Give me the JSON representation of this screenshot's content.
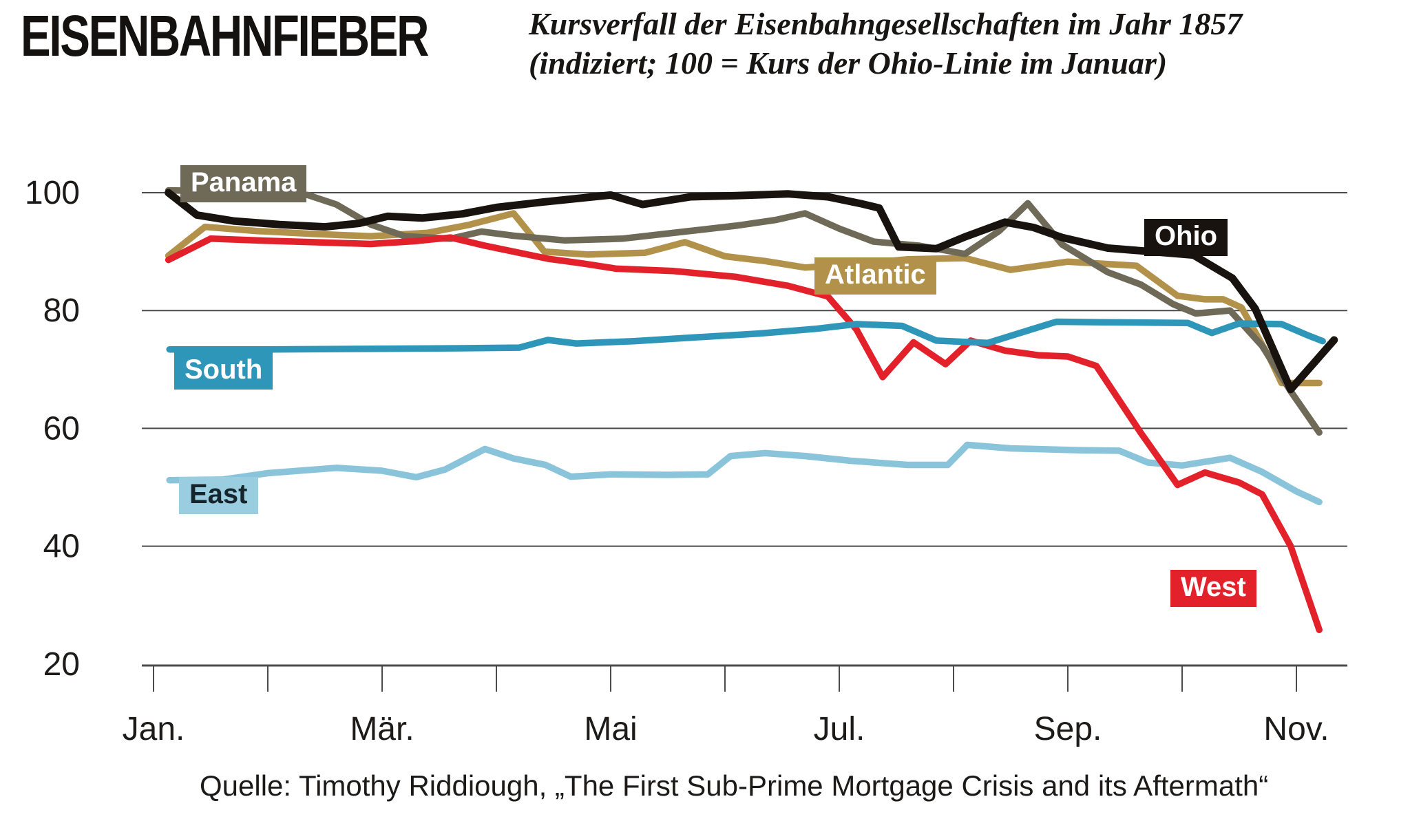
{
  "header": {
    "title": "EISENBAHNFIEBER",
    "subtitle_line1": "Kursverfall der Eisenbahngesellschaften im Jahr 1857",
    "subtitle_line2": "(indiziert; 100 = Kurs der Ohio-Linie im Januar)"
  },
  "source_line": "Quelle: Timothy Riddiough, „The First Sub-Prime Mortgage Crisis and its Aftermath“",
  "chart_data": {
    "type": "line",
    "title": "Kursverfall der Eisenbahngesellschaften im Jahr 1857",
    "xlabel": "",
    "ylabel": "",
    "x_unit": "months of 1857, 0 = Jan ... 10 = Nov",
    "ylim": [
      20,
      105
    ],
    "grid": "horizontal",
    "gridline_values": [
      100,
      80,
      60,
      40
    ],
    "y_ticks": [
      100,
      80,
      60,
      40,
      20
    ],
    "x_ticks_months": [
      0,
      1,
      2,
      3,
      4,
      5,
      6,
      7,
      8,
      9,
      10
    ],
    "x_tick_labels": [
      {
        "month": 0,
        "label": "Jan."
      },
      {
        "month": 2,
        "label": "Mär."
      },
      {
        "month": 4,
        "label": "Mai"
      },
      {
        "month": 6,
        "label": "Jul."
      },
      {
        "month": 8,
        "label": "Sep."
      },
      {
        "month": 10,
        "label": "Nov."
      }
    ],
    "axis_color": "#4b4b4b",
    "text_color": "#1d1b19",
    "series": [
      {
        "name": "East",
        "color": "#8ac4db",
        "label_bg": "#9bcde0",
        "label_text_color": "#16242c",
        "stroke_width": 9.5,
        "points": [
          [
            0.14,
            51.2
          ],
          [
            0.6,
            51.3
          ],
          [
            1.0,
            52.4
          ],
          [
            1.6,
            53.3
          ],
          [
            2.0,
            52.8
          ],
          [
            2.3,
            51.7
          ],
          [
            2.55,
            53.0
          ],
          [
            2.9,
            56.5
          ],
          [
            3.15,
            54.9
          ],
          [
            3.43,
            53.8
          ],
          [
            3.65,
            51.8
          ],
          [
            4.0,
            52.2
          ],
          [
            4.5,
            52.1
          ],
          [
            4.85,
            52.2
          ],
          [
            5.05,
            55.3
          ],
          [
            5.35,
            55.8
          ],
          [
            5.7,
            55.3
          ],
          [
            6.1,
            54.5
          ],
          [
            6.6,
            53.8
          ],
          [
            6.95,
            53.8
          ],
          [
            7.12,
            57.2
          ],
          [
            7.5,
            56.6
          ],
          [
            8.1,
            56.3
          ],
          [
            8.45,
            56.2
          ],
          [
            8.7,
            54.2
          ],
          [
            9.0,
            53.7
          ],
          [
            9.42,
            55.0
          ],
          [
            9.7,
            52.6
          ],
          [
            10.0,
            49.3
          ],
          [
            10.2,
            47.5
          ]
        ]
      },
      {
        "name": "Atlantic",
        "color": "#b2914b",
        "label_bg": "#b2914b",
        "label_text_color": "#ffffff",
        "stroke_width": 9.5,
        "points": [
          [
            0.13,
            89.3
          ],
          [
            0.45,
            94.2
          ],
          [
            0.9,
            93.5
          ],
          [
            1.4,
            93.0
          ],
          [
            1.9,
            92.6
          ],
          [
            2.4,
            93.2
          ],
          [
            2.75,
            94.5
          ],
          [
            3.15,
            96.5
          ],
          [
            3.42,
            90.0
          ],
          [
            3.8,
            89.5
          ],
          [
            4.3,
            89.8
          ],
          [
            4.65,
            91.6
          ],
          [
            5.0,
            89.2
          ],
          [
            5.35,
            88.4
          ],
          [
            5.7,
            87.3
          ],
          [
            6.1,
            87.8
          ],
          [
            6.6,
            88.7
          ],
          [
            7.1,
            88.9
          ],
          [
            7.5,
            86.9
          ],
          [
            8.0,
            88.3
          ],
          [
            8.6,
            87.6
          ],
          [
            8.96,
            82.5
          ],
          [
            9.2,
            81.9
          ],
          [
            9.36,
            81.9
          ],
          [
            9.52,
            80.5
          ],
          [
            9.77,
            71.8
          ],
          [
            9.87,
            67.7
          ],
          [
            10.2,
            67.7
          ]
        ]
      },
      {
        "name": "Panama",
        "color": "#6f6958",
        "label_bg": "#6f6958",
        "label_text_color": "#ffffff",
        "stroke_width": 9.5,
        "points": [
          [
            0.13,
            100.4
          ],
          [
            0.8,
            100.2
          ],
          [
            1.35,
            99.6
          ],
          [
            1.6,
            98.0
          ],
          [
            1.9,
            94.6
          ],
          [
            2.2,
            92.6
          ],
          [
            2.6,
            92.2
          ],
          [
            2.87,
            93.4
          ],
          [
            3.15,
            92.7
          ],
          [
            3.6,
            91.9
          ],
          [
            4.1,
            92.2
          ],
          [
            4.6,
            93.3
          ],
          [
            5.1,
            94.4
          ],
          [
            5.45,
            95.4
          ],
          [
            5.7,
            96.5
          ],
          [
            6.0,
            93.9
          ],
          [
            6.3,
            91.7
          ],
          [
            6.7,
            91.0
          ],
          [
            7.1,
            89.6
          ],
          [
            7.4,
            93.5
          ],
          [
            7.65,
            98.2
          ],
          [
            7.95,
            91.2
          ],
          [
            8.35,
            86.5
          ],
          [
            8.64,
            84.4
          ],
          [
            8.92,
            81.1
          ],
          [
            9.12,
            79.5
          ],
          [
            9.42,
            80.0
          ],
          [
            9.7,
            74.0
          ],
          [
            9.95,
            66.3
          ],
          [
            10.2,
            59.3
          ]
        ]
      },
      {
        "name": "West",
        "color": "#e2212b",
        "label_bg": "#e2212b",
        "label_text_color": "#ffffff",
        "stroke_width": 9.5,
        "points": [
          [
            0.13,
            88.6
          ],
          [
            0.5,
            92.2
          ],
          [
            0.9,
            91.9
          ],
          [
            1.4,
            91.6
          ],
          [
            1.9,
            91.3
          ],
          [
            2.3,
            91.8
          ],
          [
            2.6,
            92.4
          ],
          [
            2.9,
            91.0
          ],
          [
            3.45,
            88.8
          ],
          [
            3.75,
            88.0
          ],
          [
            4.05,
            87.1
          ],
          [
            4.55,
            86.7
          ],
          [
            5.1,
            85.7
          ],
          [
            5.55,
            84.2
          ],
          [
            5.9,
            82.4
          ],
          [
            6.15,
            76.8
          ],
          [
            6.38,
            68.7
          ],
          [
            6.65,
            74.6
          ],
          [
            6.93,
            70.9
          ],
          [
            7.15,
            74.9
          ],
          [
            7.45,
            73.2
          ],
          [
            7.75,
            72.4
          ],
          [
            8.0,
            72.2
          ],
          [
            8.25,
            70.6
          ],
          [
            8.64,
            59.2
          ],
          [
            8.96,
            50.4
          ],
          [
            9.2,
            52.5
          ],
          [
            9.5,
            50.8
          ],
          [
            9.7,
            48.8
          ],
          [
            9.95,
            40.0
          ],
          [
            10.2,
            25.8
          ]
        ]
      },
      {
        "name": "South",
        "color": "#2e96b8",
        "label_bg": "#2e96b8",
        "label_text_color": "#ffffff",
        "stroke_width": 9.5,
        "points": [
          [
            0.14,
            73.4
          ],
          [
            1.0,
            73.4
          ],
          [
            2.0,
            73.5
          ],
          [
            2.7,
            73.6
          ],
          [
            3.2,
            73.7
          ],
          [
            3.45,
            75.0
          ],
          [
            3.7,
            74.4
          ],
          [
            4.2,
            74.8
          ],
          [
            4.7,
            75.4
          ],
          [
            5.3,
            76.1
          ],
          [
            5.8,
            76.9
          ],
          [
            6.15,
            77.7
          ],
          [
            6.55,
            77.4
          ],
          [
            6.85,
            74.9
          ],
          [
            7.3,
            74.5
          ],
          [
            7.7,
            76.9
          ],
          [
            7.9,
            78.1
          ],
          [
            8.3,
            78.0
          ],
          [
            9.05,
            77.9
          ],
          [
            9.26,
            76.2
          ],
          [
            9.5,
            77.8
          ],
          [
            9.87,
            77.7
          ],
          [
            10.1,
            75.8
          ],
          [
            10.23,
            74.8
          ]
        ]
      },
      {
        "name": "Ohio",
        "color": "#18130f",
        "label_bg": "#18130f",
        "label_text_color": "#ffffff",
        "stroke_width": 11,
        "points": [
          [
            0.13,
            100.0
          ],
          [
            0.38,
            96.2
          ],
          [
            0.7,
            95.2
          ],
          [
            1.1,
            94.6
          ],
          [
            1.5,
            94.2
          ],
          [
            1.8,
            94.8
          ],
          [
            2.05,
            96.0
          ],
          [
            2.35,
            95.7
          ],
          [
            2.7,
            96.4
          ],
          [
            3.0,
            97.5
          ],
          [
            3.4,
            98.4
          ],
          [
            4.0,
            99.6
          ],
          [
            4.28,
            98.0
          ],
          [
            4.7,
            99.3
          ],
          [
            5.1,
            99.5
          ],
          [
            5.55,
            99.8
          ],
          [
            5.9,
            99.3
          ],
          [
            6.2,
            98.1
          ],
          [
            6.35,
            97.4
          ],
          [
            6.52,
            90.8
          ],
          [
            6.85,
            90.5
          ],
          [
            7.1,
            92.5
          ],
          [
            7.45,
            95.0
          ],
          [
            7.7,
            94.1
          ],
          [
            7.95,
            92.4
          ],
          [
            8.35,
            90.6
          ],
          [
            8.8,
            89.9
          ],
          [
            9.1,
            89.4
          ],
          [
            9.44,
            85.5
          ],
          [
            9.64,
            80.3
          ],
          [
            9.95,
            66.6
          ],
          [
            10.33,
            75.0
          ]
        ]
      }
    ],
    "label_positions_note": "series labels rendered as colored boxes on the plot"
  }
}
